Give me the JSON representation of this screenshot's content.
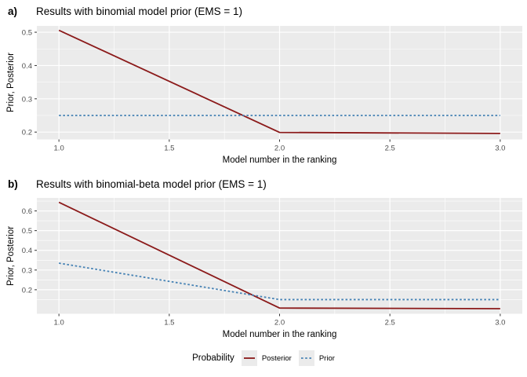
{
  "colors": {
    "posterior": "#8B1A1A",
    "prior": "#4682B4",
    "panel_bg": "#EBEBEB",
    "grid": "#FFFFFF",
    "tick_mark": "#333333",
    "tick_label": "#4D4D4D",
    "legend_key_bg": "#EBEBEB"
  },
  "legend": {
    "title": "Probability",
    "entries": [
      {
        "label": "Posterior",
        "style": "solid",
        "color": "#8B1A1A"
      },
      {
        "label": "Prior",
        "style": "dashed",
        "color": "#4682B4"
      }
    ],
    "position": "bottom"
  },
  "chart_data": [
    {
      "type": "line",
      "panel_label": "a)",
      "title": "Results with binomial model prior (EMS = 1)",
      "xlabel": "Model number in the ranking",
      "ylabel": "Prior, Posterior",
      "x": [
        1,
        2,
        3
      ],
      "series": [
        {
          "name": "Posterior",
          "style": "solid",
          "color": "#8B1A1A",
          "values": [
            0.506,
            0.199,
            0.196
          ]
        },
        {
          "name": "Prior",
          "style": "dashed",
          "color": "#4682B4",
          "values": [
            0.25,
            0.25,
            0.25
          ]
        }
      ],
      "xticks": [
        1.0,
        1.5,
        2.0,
        2.5,
        3.0
      ],
      "xtick_labels": [
        "1.0",
        "1.5",
        "2.0",
        "2.5",
        "3.0"
      ],
      "yticks": [
        0.2,
        0.3,
        0.4,
        0.5
      ],
      "ytick_labels": [
        "0.2",
        "0.3",
        "0.4",
        "0.5"
      ],
      "xlim": [
        0.9,
        3.1
      ],
      "ylim": [
        0.178,
        0.519
      ],
      "grid": true
    },
    {
      "type": "line",
      "panel_label": "b)",
      "title": "Results with binomial-beta model prior (EMS = 1)",
      "xlabel": "Model number in the ranking",
      "ylabel": "Prior, Posterior",
      "x": [
        1,
        2,
        3
      ],
      "series": [
        {
          "name": "Posterior",
          "style": "solid",
          "color": "#8B1A1A",
          "values": [
            0.644,
            0.107,
            0.104
          ]
        },
        {
          "name": "Prior",
          "style": "dashed",
          "color": "#4682B4",
          "values": [
            0.335,
            0.15,
            0.15
          ]
        }
      ],
      "xticks": [
        1.0,
        1.5,
        2.0,
        2.5,
        3.0
      ],
      "xtick_labels": [
        "1.0",
        "1.5",
        "2.0",
        "2.5",
        "3.0"
      ],
      "yticks": [
        0.2,
        0.3,
        0.4,
        0.5,
        0.6
      ],
      "ytick_labels": [
        "0.2",
        "0.3",
        "0.4",
        "0.5",
        "0.6"
      ],
      "xlim": [
        0.9,
        3.1
      ],
      "ylim": [
        0.078,
        0.666
      ],
      "grid": true
    }
  ]
}
